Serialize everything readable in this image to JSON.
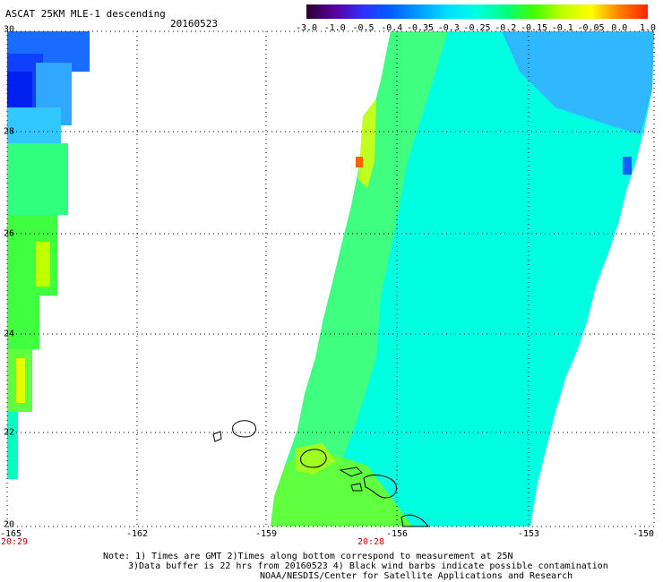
{
  "header": {
    "title": "ASCAT 25KM MLE-1 descending",
    "date": "20160523"
  },
  "colorbar": {
    "labels": [
      "-3.0",
      "-1.0",
      "-0.5",
      "-0.4",
      "-0.35",
      "-0.3",
      "-0.25",
      "-0.2",
      "-0.15",
      "-0.1",
      "-0.05",
      "0.0",
      "1.0"
    ],
    "colors": [
      "#2a0030",
      "#5a00a0",
      "#3030ff",
      "#0060ff",
      "#00a0ff",
      "#00e0ff",
      "#00ffe0",
      "#00ff80",
      "#40ff00",
      "#c0ff00",
      "#ffff00",
      "#ff8000",
      "#ff2000"
    ]
  },
  "axes": {
    "x_ticks": [
      "-165",
      "-162",
      "-159",
      "-156",
      "-153",
      "-150"
    ],
    "y_ticks": [
      "30",
      "28",
      "26",
      "24",
      "22",
      "20"
    ],
    "lon_range": [
      -165,
      -150
    ],
    "lat_range": [
      20,
      30
    ]
  },
  "times": {
    "left": "20:29",
    "right": "20:28"
  },
  "notes": {
    "line1": "Note: 1) Times are GMT 2)Times along bottom correspond to measurement at 25N",
    "line2": "3)Data buffer is 22 hrs from 20160523 4) Black wind barbs indicate possible contamination",
    "line3": "NOAA/NESDIS/Center for Satellite Applications and Research"
  }
}
